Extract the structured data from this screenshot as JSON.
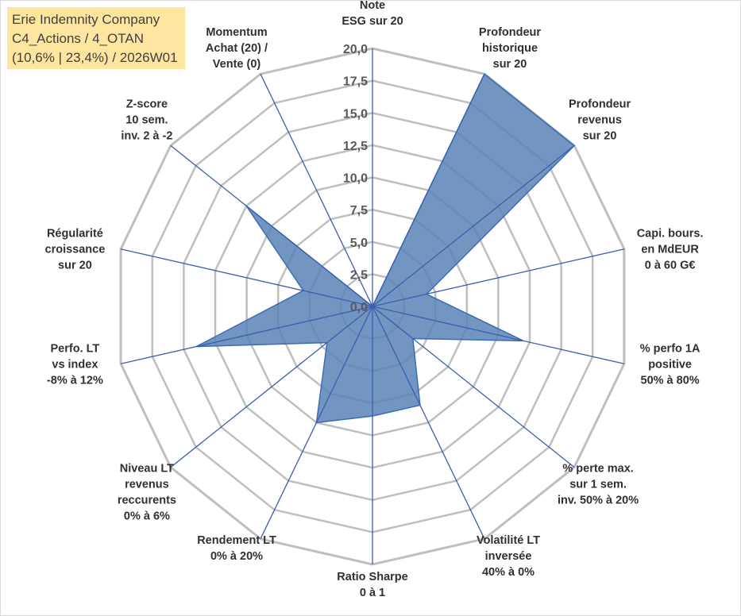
{
  "title_box": {
    "line1": "Erie Indemnity Company",
    "line2": "C4_Actions / 4_OTAN",
    "line3": "(10,6% | 23,4%) / 2026W01"
  },
  "colors": {
    "fill": "#5b82b6",
    "fill_stroke": "#3d6cb4",
    "grid": "#bfbfbf",
    "spoke": "#3a5fb0",
    "title_bg": "#ffe6a0",
    "text": "#303030",
    "tick": "#595959"
  },
  "chart_data": {
    "type": "radar",
    "title": "Erie Indemnity Company",
    "r_range": [
      0,
      20
    ],
    "ticks": [
      "0,0",
      "2,5",
      "5,0",
      "7,5",
      "10,0",
      "12,5",
      "15,0",
      "17,5",
      "20,0"
    ],
    "tick_values": [
      0,
      2.5,
      5,
      7.5,
      10,
      12.5,
      15,
      17.5,
      20
    ],
    "grid_rings": [
      2.5,
      5,
      7.5,
      10,
      12.5,
      15,
      17.5,
      20
    ],
    "axes": [
      {
        "label": [
          "Note",
          "ESG sur 20"
        ],
        "value": 0
      },
      {
        "label": [
          "Profondeur",
          "historique",
          "sur 20"
        ],
        "value": 20
      },
      {
        "label": [
          "Profondeur",
          "revenus",
          "sur 20"
        ],
        "value": 20
      },
      {
        "label": [
          "Capi. bours.",
          "en MdEUR",
          "0 à 60 G€"
        ],
        "value": 4.3
      },
      {
        "label": [
          "% perfo 1A",
          "positive",
          "50% à 80%"
        ],
        "value": 12
      },
      {
        "label": [
          "% perte max.",
          "sur 1 sem.",
          "inv. 50% à 20%"
        ],
        "value": 4
      },
      {
        "label": [
          "Volatilité LT",
          "inversée",
          "40% à 0%"
        ],
        "value": 8.5
      },
      {
        "label": [
          "Ratio Sharpe",
          "0 à 1"
        ],
        "value": 8.5
      },
      {
        "label": [
          "Rendement LT",
          "0% à 20%"
        ],
        "value": 10
      },
      {
        "label": [
          "Niveau LT",
          "revenus",
          "reccurents",
          "0% à 6%"
        ],
        "value": 4.5
      },
      {
        "label": [
          "Perfo. LT",
          "vs index",
          "-8% à 12%"
        ],
        "value": 14
      },
      {
        "label": [
          "Régularité",
          "croissance",
          "sur 20"
        ],
        "value": 5.5
      },
      {
        "label": [
          "Z-score",
          "10 sem.",
          "inv. 2 à -2"
        ],
        "value": 12.5
      },
      {
        "label": [
          "Momentum",
          "Achat (20) /",
          "Vente (0)"
        ],
        "value": 0
      }
    ]
  }
}
